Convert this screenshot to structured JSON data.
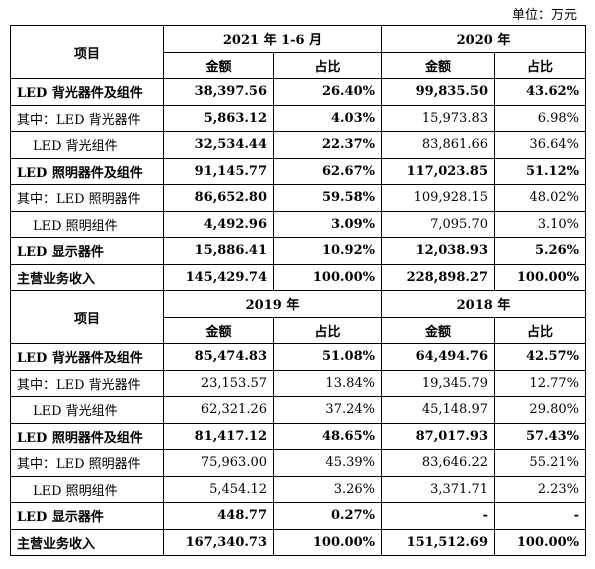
{
  "unit_label": "单位：万元",
  "item_header": "项目",
  "amount_header": "金额",
  "ratio_header": "占比",
  "blocks": [
    {
      "period_a": "2021 年 1-6 月",
      "period_b": "2020 年",
      "rows": [
        {
          "label": "LED 背光器件及组件",
          "a_amount": "38,397.56",
          "a_ratio": "26.40%",
          "b_amount": "99,835.50",
          "b_ratio": "43.62%",
          "a_bold": true,
          "b_bold": true,
          "label_bold": true
        },
        {
          "label": "其中：LED 背光器件",
          "a_amount": "5,863.12",
          "a_ratio": "4.03%",
          "b_amount": "15,973.83",
          "b_ratio": "6.98%",
          "a_bold": true,
          "b_bold": false,
          "label_bold": false
        },
        {
          "label": "LED 背光组件",
          "a_amount": "32,534.44",
          "a_ratio": "22.37%",
          "b_amount": "83,861.66",
          "b_ratio": "36.64%",
          "a_bold": true,
          "b_bold": false,
          "label_bold": false,
          "indent": true
        },
        {
          "label": "LED 照明器件及组件",
          "a_amount": "91,145.77",
          "a_ratio": "62.67%",
          "b_amount": "117,023.85",
          "b_ratio": "51.12%",
          "a_bold": true,
          "b_bold": true,
          "label_bold": true
        },
        {
          "label": "其中：LED 照明器件",
          "a_amount": "86,652.80",
          "a_ratio": "59.58%",
          "b_amount": "109,928.15",
          "b_ratio": "48.02%",
          "a_bold": true,
          "b_bold": false,
          "label_bold": false
        },
        {
          "label": "LED 照明组件",
          "a_amount": "4,492.96",
          "a_ratio": "3.09%",
          "b_amount": "7,095.70",
          "b_ratio": "3.10%",
          "a_bold": true,
          "b_bold": false,
          "label_bold": false,
          "indent": true
        },
        {
          "label": "LED 显示器件",
          "a_amount": "15,886.41",
          "a_ratio": "10.92%",
          "b_amount": "12,038.93",
          "b_ratio": "5.26%",
          "a_bold": true,
          "b_bold": true,
          "label_bold": true
        },
        {
          "label": "主营业务收入",
          "a_amount": "145,429.74",
          "a_ratio": "100.00%",
          "b_amount": "228,898.27",
          "b_ratio": "100.00%",
          "a_bold": true,
          "b_bold": true,
          "label_bold": true
        }
      ]
    },
    {
      "period_a": "2019 年",
      "period_b": "2018 年",
      "rows": [
        {
          "label": "LED 背光器件及组件",
          "a_amount": "85,474.83",
          "a_ratio": "51.08%",
          "b_amount": "64,494.76",
          "b_ratio": "42.57%",
          "a_bold": true,
          "b_bold": true,
          "label_bold": true
        },
        {
          "label": "其中：LED 背光器件",
          "a_amount": "23,153.57",
          "a_ratio": "13.84%",
          "b_amount": "19,345.79",
          "b_ratio": "12.77%",
          "a_bold": false,
          "b_bold": false,
          "label_bold": false
        },
        {
          "label": "LED 背光组件",
          "a_amount": "62,321.26",
          "a_ratio": "37.24%",
          "b_amount": "45,148.97",
          "b_ratio": "29.80%",
          "a_bold": false,
          "b_bold": false,
          "label_bold": false,
          "indent": true
        },
        {
          "label": "LED 照明器件及组件",
          "a_amount": "81,417.12",
          "a_ratio": "48.65%",
          "b_amount": "87,017.93",
          "b_ratio": "57.43%",
          "a_bold": true,
          "b_bold": true,
          "label_bold": true
        },
        {
          "label": "其中：LED 照明器件",
          "a_amount": "75,963.00",
          "a_ratio": "45.39%",
          "b_amount": "83,646.22",
          "b_ratio": "55.21%",
          "a_bold": false,
          "b_bold": false,
          "label_bold": false
        },
        {
          "label": "LED 照明组件",
          "a_amount": "5,454.12",
          "a_ratio": "3.26%",
          "b_amount": "3,371.71",
          "b_ratio": "2.23%",
          "a_bold": false,
          "b_bold": false,
          "label_bold": false,
          "indent": true
        },
        {
          "label": "LED 显示器件",
          "a_amount": "448.77",
          "a_ratio": "0.27%",
          "b_amount": "-",
          "b_ratio": "-",
          "a_bold": true,
          "b_bold": true,
          "label_bold": true
        },
        {
          "label": "主营业务收入",
          "a_amount": "167,340.73",
          "a_ratio": "100.00%",
          "b_amount": "151,512.69",
          "b_ratio": "100.00%",
          "a_bold": true,
          "b_bold": true,
          "label_bold": true
        }
      ]
    }
  ]
}
